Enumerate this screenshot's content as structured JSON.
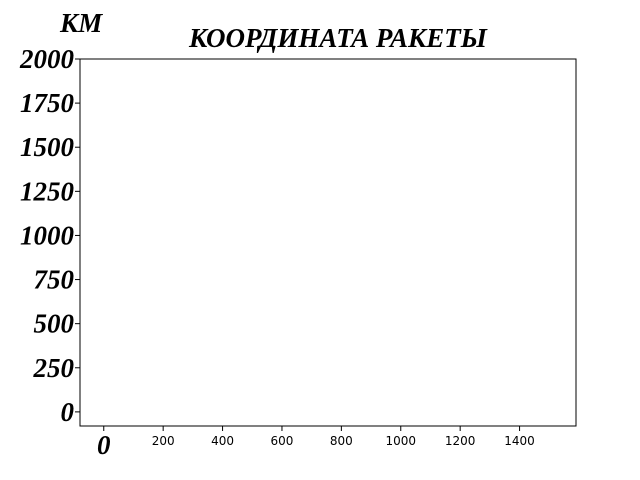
{
  "chart_data": {
    "type": "line",
    "title": "КООРДИНАТА РАКЕТЫ",
    "ylabel": "КМ",
    "xlabel": "",
    "x_ticks": [
      0,
      200,
      400,
      600,
      800,
      1000,
      1200,
      1400
    ],
    "x_tick_labels": [
      "0",
      "200",
      "400",
      "600",
      "800",
      "1000",
      "1200",
      "1400"
    ],
    "y_ticks": [
      0,
      250,
      500,
      750,
      1000,
      1250,
      1500,
      1750,
      2000
    ],
    "y_tick_labels": [
      "0",
      "250",
      "500",
      "750",
      "1000",
      "1250",
      "1500",
      "1750",
      "2000"
    ],
    "xlim": [
      -80,
      1590
    ],
    "ylim": [
      -80,
      2000
    ],
    "grid": false,
    "series": []
  }
}
